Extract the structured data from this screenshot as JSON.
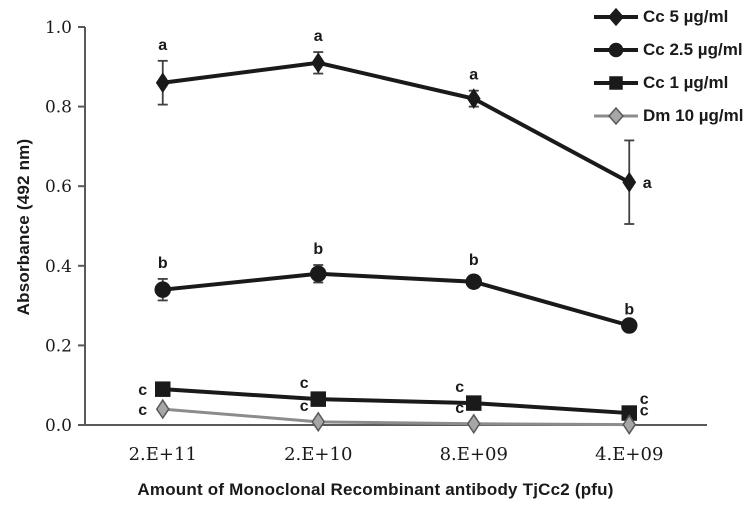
{
  "chart_data": {
    "type": "line",
    "title": "",
    "xlabel": "Amount of Monoclonal Recombinant antibody TjCc2 (pfu)",
    "ylabel": "Absorbance (492 nm)",
    "categories": [
      "2.E+11",
      "2.E+10",
      "8.E+09",
      "4.E+09"
    ],
    "ylim": [
      0.0,
      1.0
    ],
    "ytick_step": 0.2,
    "ytick_labels": [
      "0.0",
      "0.2",
      "0.4",
      "0.6",
      "0.8",
      "1.0"
    ],
    "grid": false,
    "legend_position": "top-right",
    "colors": {
      "black_series": "#1a1a1a",
      "gray_series_line": "#8c8c8c",
      "gray_marker_fill": "#a6a6a6",
      "gray_marker_stroke": "#595959",
      "axis": "#595959",
      "error_bar": "#404040",
      "text": "#1a1a1a"
    },
    "series": [
      {
        "name": "Cc 5 µg/ml",
        "marker": "diamond",
        "line_color": "#1a1a1a",
        "marker_fill": "#1a1a1a",
        "marker_stroke": "#1a1a1a",
        "values": [
          0.86,
          0.91,
          0.82,
          0.61
        ],
        "errors": [
          0.055,
          0.027,
          0.02,
          0.105
        ],
        "point_labels": [
          "a",
          "a",
          "a",
          "a"
        ],
        "label_positions": [
          "above",
          "above",
          "above",
          "right"
        ]
      },
      {
        "name": "Cc 2.5 µg/ml",
        "marker": "circle",
        "line_color": "#1a1a1a",
        "marker_fill": "#1a1a1a",
        "marker_stroke": "#1a1a1a",
        "values": [
          0.34,
          0.38,
          0.36,
          0.25
        ],
        "errors": [
          0.027,
          0.022,
          0.015,
          0
        ],
        "point_labels": [
          "b",
          "b",
          "b",
          "b"
        ],
        "label_positions": [
          "above",
          "above",
          "above",
          "above"
        ]
      },
      {
        "name": "Cc 1 µg/ml",
        "marker": "square",
        "line_color": "#1a1a1a",
        "marker_fill": "#1a1a1a",
        "marker_stroke": "#1a1a1a",
        "values": [
          0.09,
          0.065,
          0.055,
          0.03
        ],
        "errors": [
          0,
          0,
          0,
          0
        ],
        "point_labels": [
          "c",
          "c",
          "c",
          "c"
        ],
        "label_positions": [
          "left",
          "above-left",
          "above-left",
          "above-right"
        ]
      },
      {
        "name": "Dm 10 µg/ml",
        "marker": "diamond",
        "line_color": "#8c8c8c",
        "marker_fill": "#a6a6a6",
        "marker_stroke": "#595959",
        "values": [
          0.04,
          0.008,
          0.003,
          0.001
        ],
        "errors": [
          0,
          0,
          0,
          0
        ],
        "point_labels": [
          "c",
          "c",
          "c",
          "c"
        ],
        "label_positions": [
          "left",
          "above-left",
          "above-left",
          "above-right"
        ]
      }
    ]
  }
}
